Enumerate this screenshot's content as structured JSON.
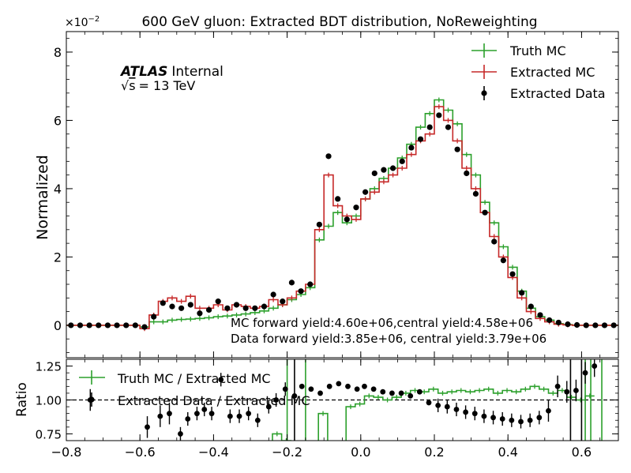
{
  "chart_data": [
    {
      "panel": "main",
      "type": "line",
      "title": "600 GeV gluon: Extracted BDT distribution, NoReweighting",
      "ylabel": "Normalized",
      "y_multiplier": "×10",
      "y_multiplier_exp": "−2",
      "ylim": [
        -0.95,
        8.6
      ],
      "yticks": [
        0,
        2,
        4,
        6,
        8
      ],
      "ytick_labels": [
        "0",
        "2",
        "4",
        "6",
        "8"
      ],
      "xlim": [
        -0.8,
        0.7
      ],
      "atlas_label": "ATLAS",
      "atlas_status": "Internal",
      "sqrt_s": "s",
      "energy_label": "= 13 TeV",
      "annotations": [
        "MC forward yield:4.60e+06,central yield:4.58e+06",
        "Data forward yield:3.85e+06, central yield:3.79e+06"
      ],
      "legend_position": "top-right",
      "bin_edges": [
        -0.8,
        -0.775,
        -0.75,
        -0.725,
        -0.7,
        -0.675,
        -0.65,
        -0.625,
        -0.6,
        -0.575,
        -0.55,
        -0.525,
        -0.5,
        -0.475,
        -0.45,
        -0.425,
        -0.4,
        -0.375,
        -0.35,
        -0.325,
        -0.3,
        -0.275,
        -0.25,
        -0.225,
        -0.2,
        -0.175,
        -0.15,
        -0.125,
        -0.1,
        -0.075,
        -0.05,
        -0.025,
        0,
        0.025,
        0.05,
        0.075,
        0.1,
        0.125,
        0.15,
        0.175,
        0.2,
        0.225,
        0.25,
        0.275,
        0.3,
        0.325,
        0.35,
        0.375,
        0.4,
        0.425,
        0.45,
        0.475,
        0.5,
        0.525,
        0.55,
        0.575,
        0.6,
        0.625,
        0.65,
        0.675,
        0.7
      ],
      "series": [
        {
          "name": "Truth MC",
          "color": "#2ca02c",
          "style": "step",
          "values": [
            0,
            0,
            0,
            0,
            0,
            0,
            0,
            0,
            -0.05,
            0.1,
            0.1,
            0.15,
            0.17,
            0.18,
            0.2,
            0.22,
            0.25,
            0.27,
            0.3,
            0.33,
            0.37,
            0.42,
            0.5,
            0.6,
            0.75,
            0.9,
            1.1,
            2.5,
            2.9,
            3.3,
            3.0,
            3.2,
            3.7,
            4.0,
            4.3,
            4.6,
            4.9,
            5.3,
            5.8,
            6.2,
            6.6,
            6.3,
            5.9,
            5.0,
            4.4,
            3.6,
            3.0,
            2.3,
            1.7,
            1.0,
            0.5,
            0.25,
            0.15,
            0.05,
            0.02,
            0,
            0,
            0,
            0,
            0
          ]
        },
        {
          "name": "Extracted MC",
          "color": "#c62828",
          "style": "step",
          "values": [
            0,
            0,
            0,
            0,
            0,
            0,
            0,
            0,
            -0.1,
            0.3,
            0.7,
            0.8,
            0.7,
            0.85,
            0.5,
            0.5,
            0.6,
            0.45,
            0.6,
            0.55,
            0.5,
            0.55,
            0.75,
            0.6,
            0.8,
            1.0,
            1.2,
            2.8,
            4.4,
            3.5,
            3.2,
            3.1,
            3.7,
            3.9,
            4.2,
            4.4,
            4.6,
            5.0,
            5.4,
            5.6,
            6.4,
            6.0,
            5.4,
            4.6,
            4.0,
            3.3,
            2.6,
            2.0,
            1.4,
            0.8,
            0.4,
            0.2,
            0.1,
            0.03,
            0.01,
            0,
            0,
            0,
            0,
            0
          ]
        },
        {
          "name": "Extracted Data",
          "color": "#000000",
          "style": "points",
          "values": [
            0,
            0,
            0,
            0,
            0,
            0,
            0,
            0,
            -0.05,
            0.25,
            0.65,
            0.55,
            0.5,
            0.6,
            0.35,
            0.45,
            0.7,
            0.5,
            0.6,
            0.5,
            0.5,
            0.55,
            0.9,
            0.7,
            1.25,
            1.0,
            1.2,
            2.95,
            4.95,
            3.7,
            3.1,
            3.45,
            3.9,
            4.45,
            4.55,
            4.6,
            4.8,
            5.2,
            5.45,
            5.8,
            6.15,
            5.8,
            5.15,
            4.45,
            3.85,
            3.3,
            2.45,
            1.9,
            1.5,
            0.95,
            0.55,
            0.3,
            0.15,
            0.08,
            0.03,
            0.01,
            0,
            0,
            0,
            0
          ]
        }
      ]
    },
    {
      "panel": "ratio",
      "type": "line",
      "ylabel": "Ratio",
      "xlabel": "",
      "ylim": [
        0.7,
        1.3
      ],
      "yticks": [
        0.75,
        1.0,
        1.25
      ],
      "ytick_labels": [
        "0.75",
        "1.00",
        "1.25"
      ],
      "xlim": [
        -0.8,
        0.7
      ],
      "xticks": [
        -0.8,
        -0.6,
        -0.4,
        -0.2,
        0.0,
        0.2,
        0.4,
        0.6
      ],
      "xtick_labels": [
        "−0.8",
        "−0.6",
        "−0.4",
        "−0.2",
        "0.0",
        "0.2",
        "0.4",
        "0.6"
      ],
      "reference_line": 1.0,
      "legend_position": "top-left",
      "series": [
        {
          "name": "Truth MC / Extracted MC",
          "color": "#2ca02c",
          "style": "step",
          "x_from": -0.29,
          "values": [
            0.6,
            0.6,
            0.75,
            0.7,
            0.6,
            0.65,
            0.55,
            0.9,
            0.65,
            0.6,
            0.95,
            0.97,
            1.03,
            1.02,
            1.0,
            1.02,
            1.05,
            1.07,
            1.06,
            1.08,
            1.05,
            1.06,
            1.07,
            1.06,
            1.07,
            1.08,
            1.05,
            1.07,
            1.06,
            1.08,
            1.1,
            1.08,
            1.05,
            1.07,
            1.02,
            1.0,
            1.03
          ]
        },
        {
          "name": "Extracted Data / Extracted MC",
          "color": "#000000",
          "style": "points",
          "x": [
            -0.735,
            -0.58,
            -0.545,
            -0.52,
            -0.49,
            -0.47,
            -0.445,
            -0.425,
            -0.405,
            -0.38,
            -0.355,
            -0.33,
            -0.305,
            -0.28,
            -0.25,
            -0.23,
            -0.205,
            -0.18,
            -0.16,
            -0.135,
            -0.11,
            -0.085,
            -0.06,
            -0.035,
            -0.01,
            0.01,
            0.035,
            0.06,
            0.085,
            0.11,
            0.135,
            0.16,
            0.185,
            0.21,
            0.235,
            0.26,
            0.285,
            0.31,
            0.335,
            0.36,
            0.385,
            0.41,
            0.435,
            0.46,
            0.485,
            0.51,
            0.535,
            0.56,
            0.585,
            0.61,
            0.635
          ],
          "values": [
            1.0,
            0.8,
            0.88,
            0.9,
            0.75,
            0.86,
            0.9,
            0.93,
            0.9,
            1.15,
            0.88,
            0.88,
            0.9,
            0.85,
            0.95,
            1.0,
            1.08,
            1.03,
            1.1,
            1.08,
            1.05,
            1.1,
            1.12,
            1.1,
            1.08,
            1.1,
            1.08,
            1.06,
            1.05,
            1.05,
            1.03,
            1.06,
            0.98,
            0.96,
            0.95,
            0.93,
            0.91,
            0.9,
            0.88,
            0.87,
            0.86,
            0.85,
            0.84,
            0.85,
            0.87,
            0.92,
            1.1,
            1.06,
            1.07,
            1.2,
            1.25
          ]
        }
      ]
    }
  ]
}
